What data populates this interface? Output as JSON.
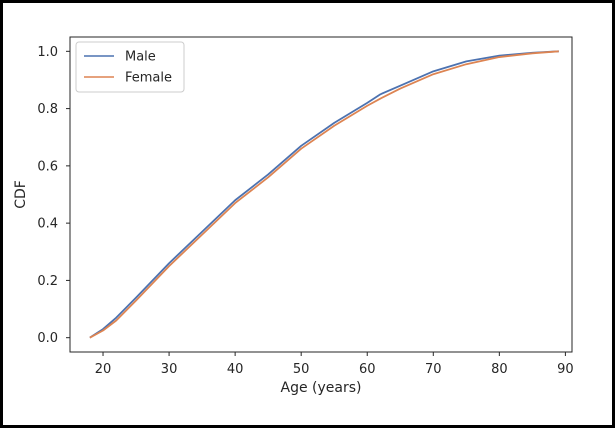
{
  "chart_data": {
    "type": "line",
    "title": "",
    "xlabel": "Age (years)",
    "ylabel": "CDF",
    "xlim": [
      15,
      91
    ],
    "ylim": [
      -0.05,
      1.05
    ],
    "xticks": [
      20,
      30,
      40,
      50,
      60,
      70,
      80,
      90
    ],
    "yticks": [
      0.0,
      0.2,
      0.4,
      0.6,
      0.8,
      1.0
    ],
    "xtick_labels": [
      "20",
      "30",
      "40",
      "50",
      "60",
      "70",
      "80",
      "90"
    ],
    "ytick_labels": [
      "0.0",
      "0.2",
      "0.4",
      "0.6",
      "0.8",
      "1.0"
    ],
    "grid": false,
    "legend_position": "upper-left",
    "series": [
      {
        "name": "Male",
        "color": "#4c72b0",
        "x": [
          18,
          20,
          22,
          25,
          30,
          35,
          40,
          45,
          50,
          55,
          60,
          62,
          65,
          70,
          75,
          80,
          85,
          89
        ],
        "y": [
          0.0,
          0.03,
          0.07,
          0.14,
          0.26,
          0.37,
          0.48,
          0.57,
          0.67,
          0.75,
          0.82,
          0.85,
          0.88,
          0.93,
          0.965,
          0.985,
          0.995,
          1.0
        ]
      },
      {
        "name": "Female",
        "color": "#dd8452",
        "x": [
          18,
          20,
          22,
          25,
          30,
          35,
          40,
          45,
          50,
          55,
          60,
          62,
          65,
          70,
          75,
          80,
          85,
          89
        ],
        "y": [
          0.0,
          0.025,
          0.06,
          0.13,
          0.25,
          0.36,
          0.47,
          0.56,
          0.66,
          0.74,
          0.81,
          0.835,
          0.87,
          0.92,
          0.955,
          0.98,
          0.993,
          1.0
        ]
      }
    ]
  }
}
